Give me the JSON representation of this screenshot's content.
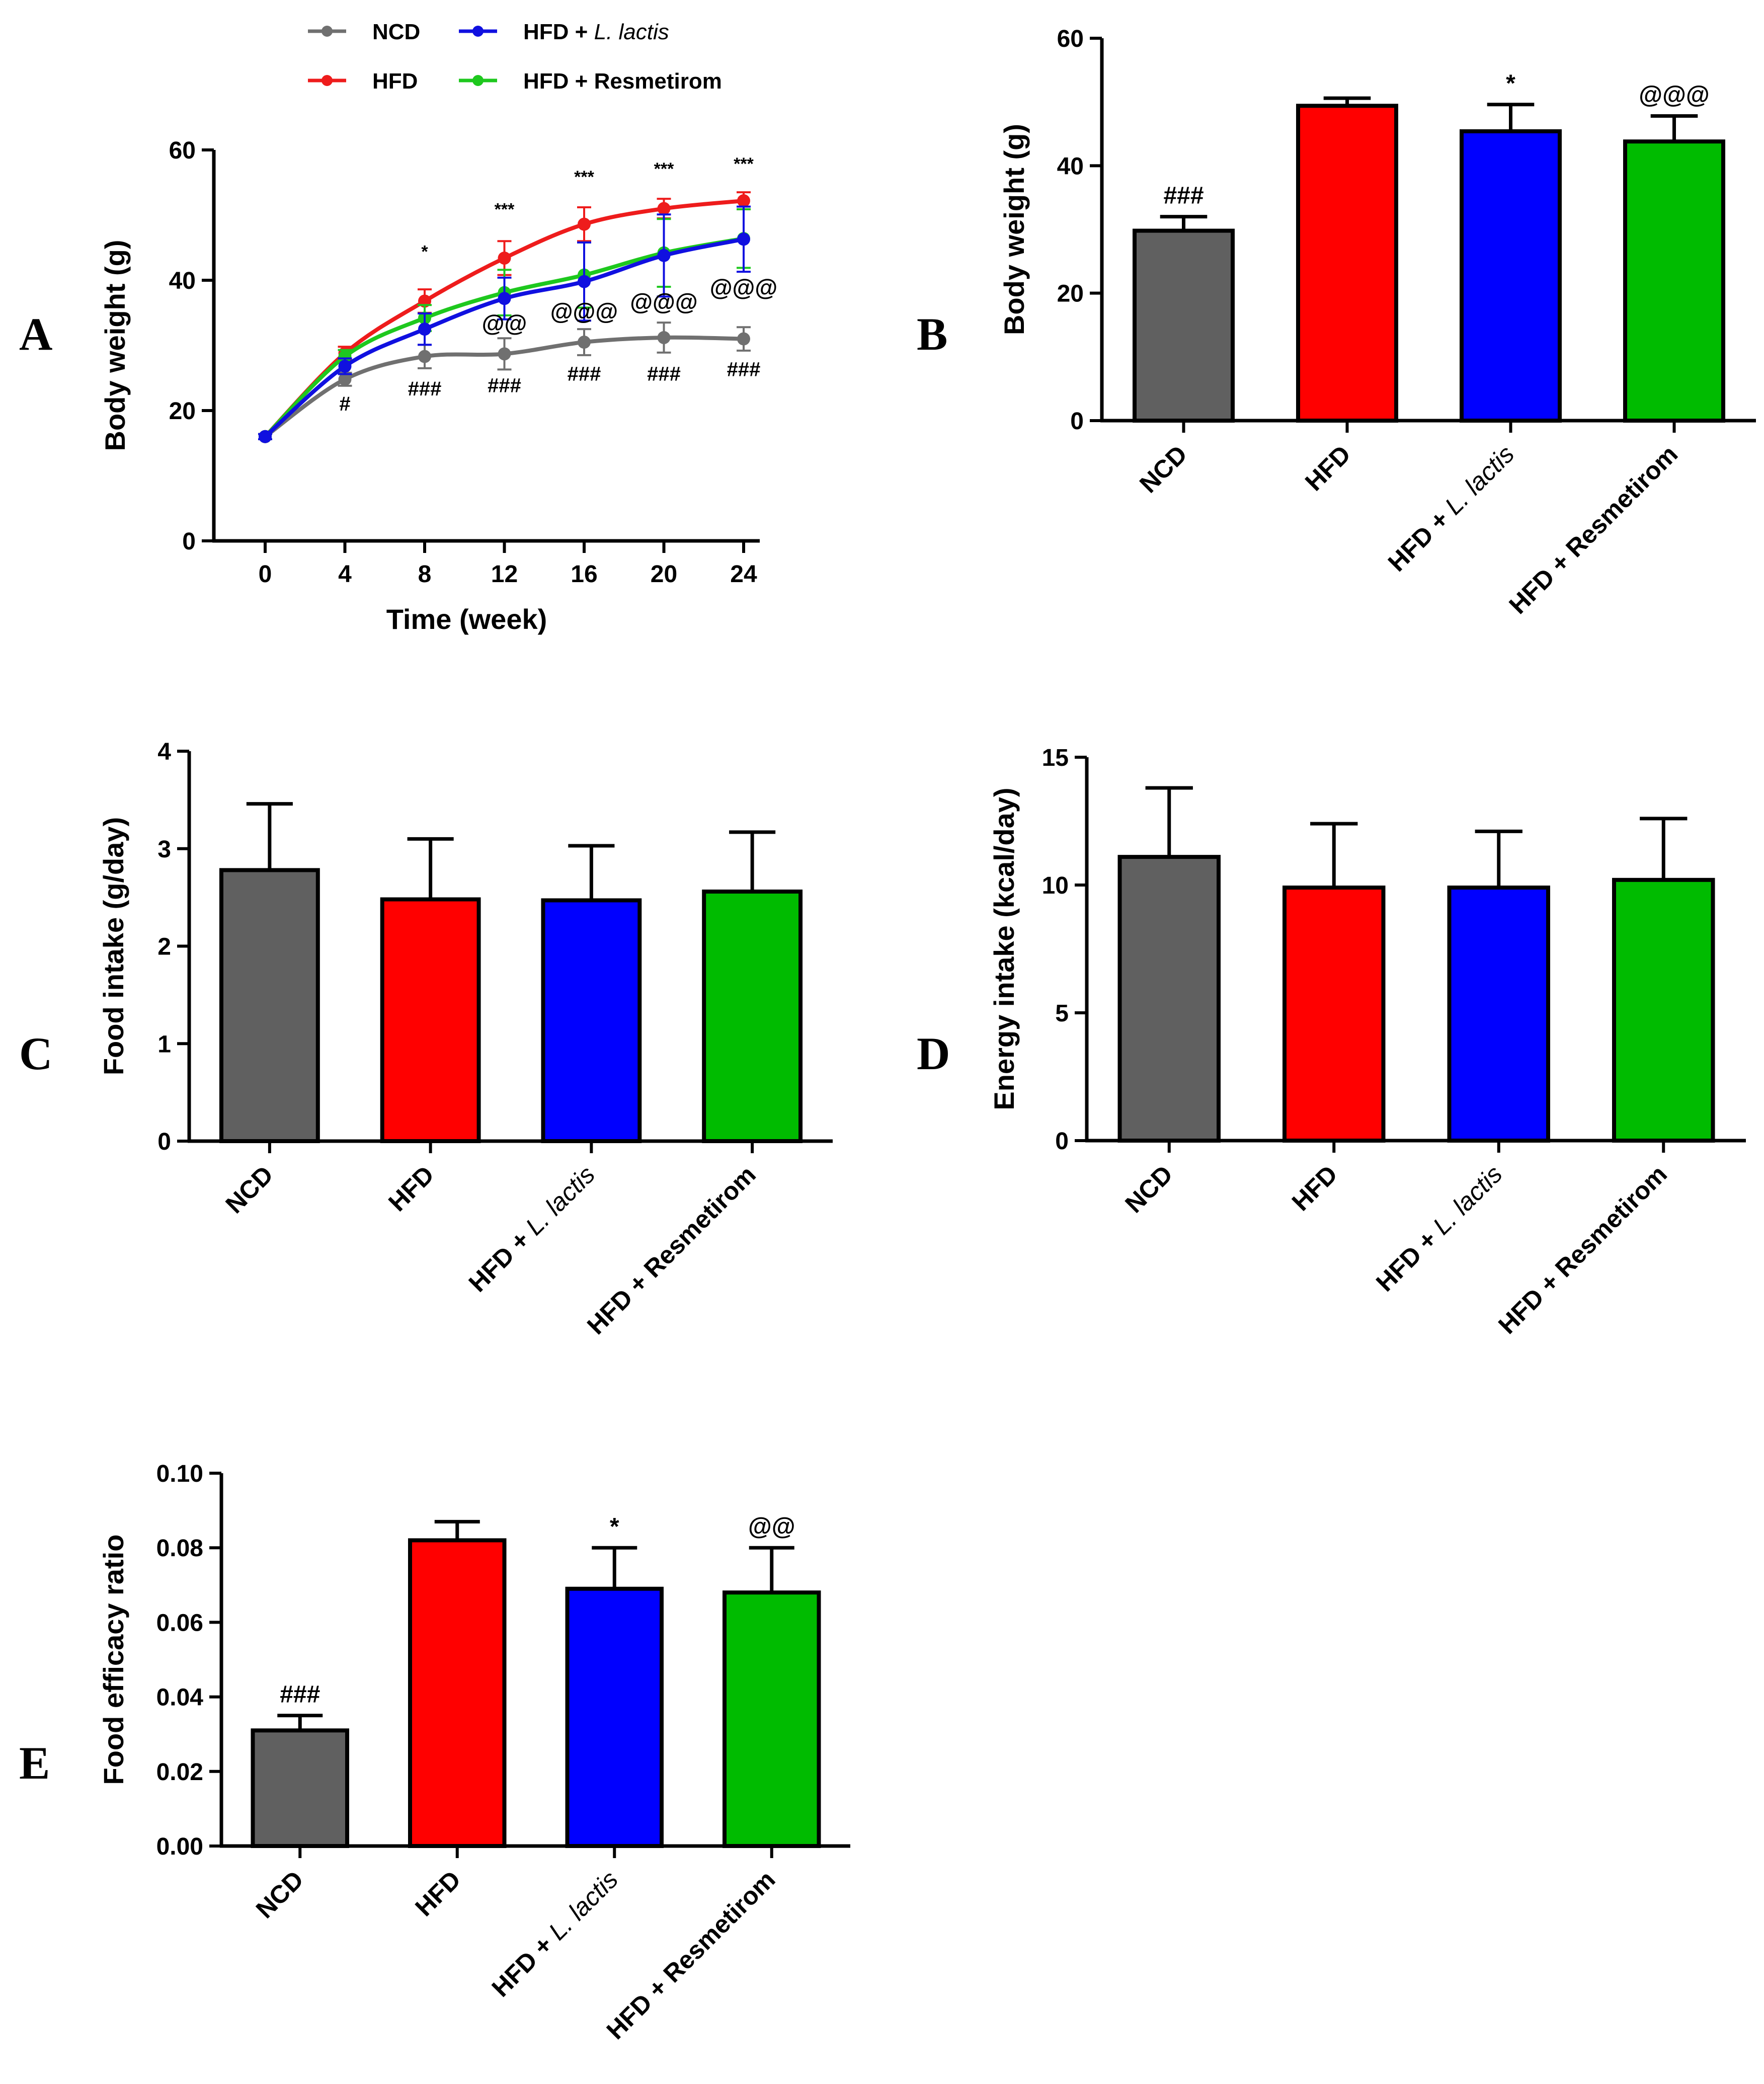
{
  "colors": {
    "NCD": "#606060",
    "HFD": "#ff0000",
    "HFD + L. lactis": "#0000ff",
    "HFD + Resmetirom": "#00bb00",
    "line_NCD": "#707070",
    "line_HFD": "#ee1c1c",
    "line_LL": "#1010e0",
    "line_RES": "#1ec81e"
  },
  "chart_data": [
    {
      "panel": "A",
      "type": "line",
      "xlabel": "Time (week)",
      "ylabel": "Body weight (g)",
      "x": [
        0,
        4,
        8,
        12,
        16,
        20,
        24
      ],
      "xticks": [
        "0",
        "4",
        "8",
        "12",
        "16",
        "20",
        "24"
      ],
      "ylim": [
        0,
        60
      ],
      "yticks": [
        "0",
        "20",
        "40",
        "60"
      ],
      "legend": [
        {
          "key": "NCD",
          "pre": "NCD",
          "italic": "",
          "post": ""
        },
        {
          "key": "HFD + L. lactis",
          "pre": "HFD + ",
          "italic": "L. lactis",
          "post": ""
        },
        {
          "key": "HFD",
          "pre": "HFD",
          "italic": "",
          "post": ""
        },
        {
          "key": "HFD + Resmetirom",
          "pre": "HFD + Resmetirom",
          "italic": "",
          "post": ""
        }
      ],
      "series": [
        {
          "name": "NCD",
          "colorKey": "line_NCD",
          "values": [
            16.0,
            24.8,
            28.3,
            28.7,
            30.5,
            31.2,
            31.0
          ],
          "err": [
            0.4,
            1.0,
            1.8,
            2.4,
            2.0,
            2.3,
            1.8
          ]
        },
        {
          "name": "HFD",
          "colorKey": "line_HFD",
          "values": [
            16.0,
            28.8,
            36.8,
            43.4,
            48.6,
            51.0,
            52.2
          ],
          "err": [
            0.4,
            1.0,
            1.8,
            2.6,
            2.6,
            1.5,
            1.3
          ]
        },
        {
          "name": "HFD + Resmetirom",
          "colorKey": "line_RES",
          "values": [
            16.0,
            28.3,
            34.2,
            38.1,
            40.8,
            44.2,
            46.4
          ],
          "err": [
            0.4,
            1.0,
            2.0,
            3.5,
            5.0,
            5.2,
            4.5
          ]
        },
        {
          "name": "HFD + L. lactis",
          "colorKey": "line_LL",
          "values": [
            16.0,
            26.8,
            32.5,
            37.2,
            39.8,
            43.8,
            46.3
          ],
          "err": [
            0.4,
            1.2,
            2.4,
            3.2,
            6.0,
            6.3,
            5.0
          ]
        }
      ],
      "annotations": [
        {
          "text": "#",
          "x": 4,
          "y": 20.0,
          "size": 40
        },
        {
          "text": "###",
          "x": 8,
          "y": 22.3,
          "size": 40
        },
        {
          "text": "###",
          "x": 12,
          "y": 22.8,
          "size": 40
        },
        {
          "text": "###",
          "x": 16,
          "y": 24.6,
          "size": 40
        },
        {
          "text": "###",
          "x": 20,
          "y": 24.6,
          "size": 40
        },
        {
          "text": "###",
          "x": 24,
          "y": 25.3,
          "size": 40
        },
        {
          "text": "*",
          "x": 8,
          "y": 43.5,
          "size": 34
        },
        {
          "text": "***",
          "x": 12,
          "y": 50.0,
          "size": 34
        },
        {
          "text": "***",
          "x": 16,
          "y": 55.0,
          "size": 34
        },
        {
          "text": "***",
          "x": 20,
          "y": 56.2,
          "size": 34
        },
        {
          "text": "***",
          "x": 24,
          "y": 57.0,
          "size": 34
        },
        {
          "text": "@@",
          "x": 12,
          "y": 32.2,
          "size": 46
        },
        {
          "text": "@@@",
          "x": 16,
          "y": 34.0,
          "size": 46
        },
        {
          "text": "@@@",
          "x": 20,
          "y": 35.5,
          "size": 46
        },
        {
          "text": "@@@",
          "x": 24,
          "y": 37.7,
          "size": 46
        }
      ]
    },
    {
      "panel": "B",
      "type": "bar",
      "ylabel": "Body weight (g)",
      "categories": [
        {
          "key": "NCD",
          "pre": "NCD",
          "italic": "",
          "post": ""
        },
        {
          "key": "HFD",
          "pre": "HFD",
          "italic": "",
          "post": ""
        },
        {
          "key": "HFD + L. lactis",
          "pre": "HFD + ",
          "italic": "L. lactis",
          "post": ""
        },
        {
          "key": "HFD + Resmetirom",
          "pre": "HFD + Resmetirom",
          "italic": "",
          "post": ""
        }
      ],
      "values": [
        29.8,
        49.4,
        45.4,
        43.8
      ],
      "err": [
        2.2,
        1.2,
        4.2,
        4.0
      ],
      "ylim": [
        0,
        60
      ],
      "yticks": [
        0,
        20,
        40,
        60
      ],
      "yticklabels": [
        "0",
        "20",
        "40",
        "60"
      ],
      "annotations": [
        "###",
        "",
        "*",
        "@@@"
      ]
    },
    {
      "panel": "C",
      "type": "bar",
      "ylabel": "Food intake (g/day)",
      "categories": [
        {
          "key": "NCD",
          "pre": "NCD",
          "italic": "",
          "post": ""
        },
        {
          "key": "HFD",
          "pre": "HFD",
          "italic": "",
          "post": ""
        },
        {
          "key": "HFD + L. lactis",
          "pre": "HFD + ",
          "italic": "L. lactis",
          "post": ""
        },
        {
          "key": "HFD + Resmetirom",
          "pre": "HFD + Resmetirom",
          "italic": "",
          "post": ""
        }
      ],
      "values": [
        2.78,
        2.48,
        2.47,
        2.56
      ],
      "err": [
        0.68,
        0.62,
        0.56,
        0.61
      ],
      "ylim": [
        0,
        4
      ],
      "yticks": [
        0,
        1,
        2,
        3,
        4
      ],
      "yticklabels": [
        "0",
        "1",
        "2",
        "3",
        "4"
      ],
      "annotations": [
        "",
        "",
        "",
        ""
      ]
    },
    {
      "panel": "D",
      "type": "bar",
      "ylabel": "Energy intake (kcal/day)",
      "categories": [
        {
          "key": "NCD",
          "pre": "NCD",
          "italic": "",
          "post": ""
        },
        {
          "key": "HFD",
          "pre": "HFD",
          "italic": "",
          "post": ""
        },
        {
          "key": "HFD + L. lactis",
          "pre": "HFD + ",
          "italic": "L. lactis",
          "post": ""
        },
        {
          "key": "HFD + Resmetirom",
          "pre": "HFD + Resmetirom",
          "italic": "",
          "post": ""
        }
      ],
      "values": [
        11.1,
        9.9,
        9.9,
        10.2
      ],
      "err": [
        2.7,
        2.5,
        2.2,
        2.4
      ],
      "ylim": [
        0,
        15
      ],
      "yticks": [
        0,
        5,
        10,
        15
      ],
      "yticklabels": [
        "0",
        "5",
        "10",
        "15"
      ],
      "annotations": [
        "",
        "",
        "",
        ""
      ]
    },
    {
      "panel": "E",
      "type": "bar",
      "ylabel": "Food efficacy ratio",
      "categories": [
        {
          "key": "NCD",
          "pre": "NCD",
          "italic": "",
          "post": ""
        },
        {
          "key": "HFD",
          "pre": "HFD",
          "italic": "",
          "post": ""
        },
        {
          "key": "HFD + L. lactis",
          "pre": "HFD + ",
          "italic": "L. lactis",
          "post": ""
        },
        {
          "key": "HFD + Resmetirom",
          "pre": "HFD + Resmetirom",
          "italic": "",
          "post": ""
        }
      ],
      "values": [
        0.031,
        0.082,
        0.069,
        0.068
      ],
      "err": [
        0.004,
        0.005,
        0.011,
        0.012
      ],
      "ylim": [
        0,
        0.1
      ],
      "yticks": [
        0,
        0.02,
        0.04,
        0.06,
        0.08,
        0.1
      ],
      "yticklabels": [
        "0.00",
        "0.02",
        "0.04",
        "0.06",
        "0.08",
        "0.10"
      ],
      "annotations": [
        "###",
        "",
        "*",
        "@@"
      ]
    }
  ]
}
